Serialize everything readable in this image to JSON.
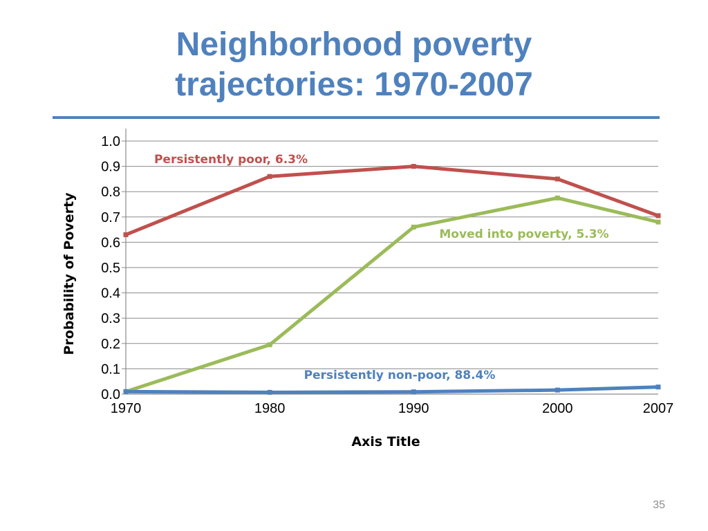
{
  "slide": {
    "title_line1": "Neighborhood poverty",
    "title_line2": "trajectories: 1970-2007",
    "page_number": "35",
    "accent_color": "#4f81bd"
  },
  "chart_data": {
    "type": "line",
    "x": [
      "1970",
      "1980",
      "1990",
      "2000",
      "2007"
    ],
    "xlabel": "Axis Title",
    "ylabel": "Probability of Poverty",
    "ylim": [
      0,
      1.0
    ],
    "yticks": [
      "0.0",
      "0.1",
      "0.2",
      "0.3",
      "0.4",
      "0.5",
      "0.6",
      "0.7",
      "0.8",
      "0.9",
      "1.0"
    ],
    "grid": true,
    "series": [
      {
        "name": "Persistently poor, 6.3%",
        "color": "#c0504d",
        "values": [
          0.63,
          0.86,
          0.9,
          0.85,
          0.705
        ]
      },
      {
        "name": "Moved into poverty, 5.3%",
        "color": "#9bbb59",
        "values": [
          0.01,
          0.195,
          0.66,
          0.775,
          0.68
        ]
      },
      {
        "name": "Persistently non-poor, 88.4%",
        "color": "#4f81bd",
        "values": [
          0.01,
          0.007,
          0.009,
          0.016,
          0.028
        ]
      }
    ]
  }
}
